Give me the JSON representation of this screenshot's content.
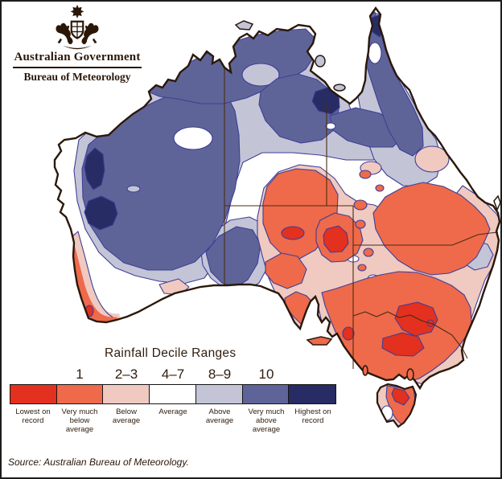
{
  "logo": {
    "government": "Australian Government",
    "bureau": "Bureau of Meteorology"
  },
  "legend": {
    "title": "Rainfall Decile Ranges",
    "decile_numbers": [
      "1",
      "2–3",
      "4–7",
      "8–9",
      "10"
    ],
    "swatches": [
      {
        "label": "Lowest on record",
        "color": "#e3301f"
      },
      {
        "label": "Very much below average",
        "color": "#ee6a4b"
      },
      {
        "label": "Below average",
        "color": "#f0c9c0"
      },
      {
        "label": "Average",
        "color": "#ffffff"
      },
      {
        "label": "Above average",
        "color": "#c3c5d7"
      },
      {
        "label": "Very much above average",
        "color": "#5f6498"
      },
      {
        "label": "Highest on record",
        "color": "#272c64"
      }
    ]
  },
  "source_note": "Source: Australian Bureau of Meteorology.",
  "map": {
    "region": "Australia",
    "theme": "Rainfall decile ranges",
    "palette": {
      "lowest_on_record": "#e3301f",
      "very_much_below_average": "#ee6a4b",
      "below_average": "#f0c9c0",
      "average": "#ffffff",
      "above_average": "#c3c5d7",
      "very_much_above_average": "#5f6498",
      "highest_on_record": "#272c64"
    },
    "contour_color": "#3e3e96",
    "coastline_color": "#2a180b",
    "state_border_color": "#4a2c10"
  }
}
